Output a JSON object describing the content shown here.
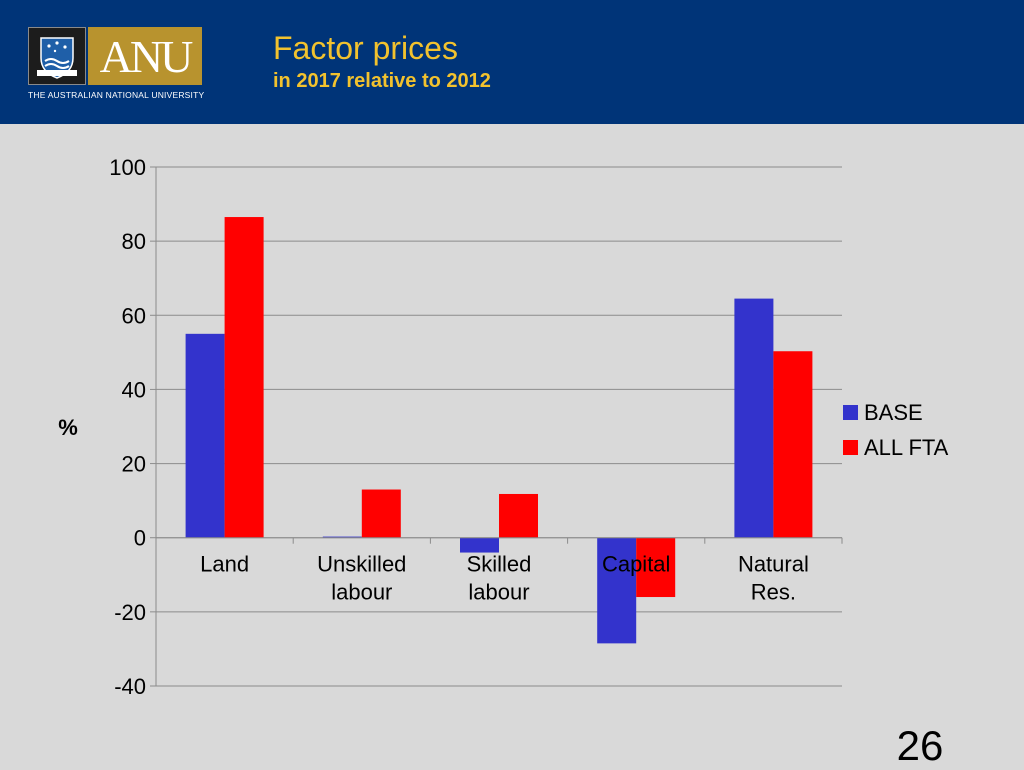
{
  "header": {
    "logo_word": "ANU",
    "logo_subtitle": "THE AUSTRALIAN NATIONAL UNIVERSITY",
    "title": "Factor prices",
    "subtitle": "in 2017 relative to 2012"
  },
  "page_number": "26",
  "chart_data": {
    "type": "bar",
    "title": "",
    "xlabel": "",
    "ylabel": "%",
    "categories": [
      "Land",
      "Unskilled labour",
      "Skilled labour",
      "Capital",
      "Natural Res."
    ],
    "category_lines": [
      [
        "Land"
      ],
      [
        "Unskilled",
        "labour"
      ],
      [
        "Skilled",
        "labour"
      ],
      [
        "Capital"
      ],
      [
        "Natural",
        "Res."
      ]
    ],
    "series": [
      {
        "name": "BASE",
        "color": "#3333cc",
        "values": [
          55,
          0.3,
          -4,
          -28.5,
          64.5
        ]
      },
      {
        "name": "ALL FTA",
        "color": "#ff0000",
        "values": [
          86.5,
          13,
          11.8,
          -16,
          50.3
        ]
      }
    ],
    "ylim": [
      -40,
      100
    ],
    "yticks": [
      -40,
      -20,
      0,
      20,
      40,
      60,
      80,
      100
    ],
    "grid": true,
    "legend_position": "right"
  }
}
